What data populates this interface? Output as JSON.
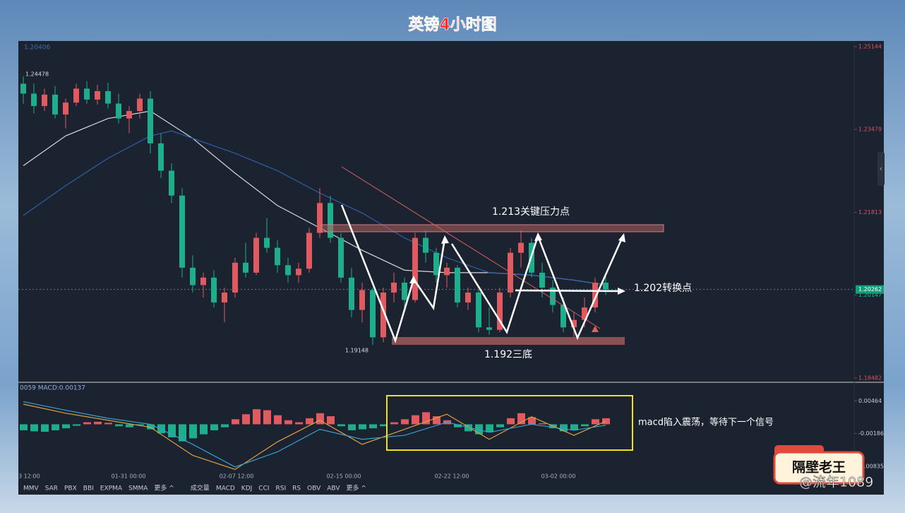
{
  "title": "英镑4小时图",
  "chart_data": {
    "type": "candlestick",
    "up_color": "#e05a5f",
    "down_color": "#1fae8c",
    "candles": [
      [
        1.244,
        1.2455,
        1.24,
        1.242
      ],
      [
        1.242,
        1.244,
        1.238,
        1.2395
      ],
      [
        1.2395,
        1.243,
        1.2385,
        1.2418
      ],
      [
        1.2418,
        1.2435,
        1.237,
        1.2378
      ],
      [
        1.2378,
        1.241,
        1.235,
        1.2402
      ],
      [
        1.2402,
        1.244,
        1.2395,
        1.243
      ],
      [
        1.243,
        1.2445,
        1.24,
        1.2408
      ],
      [
        1.2408,
        1.2438,
        1.2398,
        1.2425
      ],
      [
        1.2425,
        1.2442,
        1.239,
        1.24
      ],
      [
        1.24,
        1.242,
        1.236,
        1.237
      ],
      [
        1.237,
        1.2395,
        1.234,
        1.2385
      ],
      [
        1.2385,
        1.242,
        1.237,
        1.241
      ],
      [
        1.241,
        1.2425,
        1.23,
        1.232
      ],
      [
        1.232,
        1.234,
        1.225,
        1.2265
      ],
      [
        1.2265,
        1.228,
        1.22,
        1.2215
      ],
      [
        1.2215,
        1.223,
        1.205,
        1.207
      ],
      [
        1.207,
        1.2095,
        1.202,
        1.2035
      ],
      [
        1.2035,
        1.206,
        1.201,
        1.205
      ],
      [
        1.205,
        1.2065,
        1.199,
        1.2
      ],
      [
        1.2,
        1.203,
        1.196,
        1.202
      ],
      [
        1.202,
        1.209,
        1.201,
        1.208
      ],
      [
        1.208,
        1.212,
        1.205,
        1.206
      ],
      [
        1.206,
        1.214,
        1.2055,
        1.213
      ],
      [
        1.213,
        1.217,
        1.21,
        1.211
      ],
      [
        1.211,
        1.2125,
        1.206,
        1.2075
      ],
      [
        1.2075,
        1.209,
        1.204,
        1.2055
      ],
      [
        1.2055,
        1.208,
        1.204,
        1.2068
      ],
      [
        1.2068,
        1.215,
        1.206,
        1.214
      ],
      [
        1.214,
        1.223,
        1.213,
        1.22
      ],
      [
        1.22,
        1.2215,
        1.212,
        1.213
      ],
      [
        1.213,
        1.214,
        1.204,
        1.205
      ],
      [
        1.205,
        1.207,
        1.197,
        1.1985
      ],
      [
        1.1985,
        1.204,
        1.196,
        1.2025
      ],
      [
        1.2025,
        1.203,
        1.1915,
        1.193
      ],
      [
        1.193,
        1.203,
        1.192,
        1.202
      ],
      [
        1.202,
        1.206,
        1.2,
        1.204
      ],
      [
        1.204,
        1.205,
        1.199,
        1.2005
      ],
      [
        1.2005,
        1.214,
        1.2,
        1.213
      ],
      [
        1.213,
        1.2145,
        1.208,
        1.21
      ],
      [
        1.21,
        1.211,
        1.204,
        1.2055
      ],
      [
        1.2055,
        1.208,
        1.203,
        1.207
      ],
      [
        1.207,
        1.2075,
        1.199,
        1.2
      ],
      [
        1.2,
        1.203,
        1.1985,
        1.202
      ],
      [
        1.202,
        1.2025,
        1.194,
        1.195
      ],
      [
        1.195,
        1.199,
        1.1935,
        1.1945
      ],
      [
        1.1945,
        1.203,
        1.194,
        1.202
      ],
      [
        1.202,
        1.211,
        1.201,
        1.21
      ],
      [
        1.21,
        1.2145,
        1.207,
        1.212
      ],
      [
        1.212,
        1.213,
        1.205,
        1.206
      ],
      [
        1.206,
        1.208,
        1.201,
        1.203
      ],
      [
        1.203,
        1.2045,
        1.198,
        1.1995
      ],
      [
        1.1995,
        1.201,
        1.194,
        1.195
      ],
      [
        1.195,
        1.198,
        1.193,
        1.1965
      ],
      [
        1.1965,
        1.201,
        1.195,
        1.199
      ],
      [
        1.199,
        1.205,
        1.198,
        1.204
      ],
      [
        1.204,
        1.2055,
        1.2015,
        1.2026
      ]
    ],
    "ma_lines": [
      {
        "color": "#d8d8d8",
        "x": [
          0,
          4,
          8,
          12,
          16,
          20,
          24,
          28,
          32,
          36,
          40,
          44,
          48,
          52,
          55
        ],
        "values": [
          1.2275,
          1.2335,
          1.237,
          1.2385,
          1.233,
          1.226,
          1.2195,
          1.215,
          1.2105,
          1.2065,
          1.206,
          1.206,
          1.2055,
          1.2045,
          1.2035
        ]
      },
      {
        "color": "#2f5fa8",
        "x": [
          0,
          4,
          8,
          12,
          14,
          20,
          24,
          28,
          32,
          36,
          40,
          44,
          48,
          52,
          55
        ],
        "values": [
          1.2175,
          1.2235,
          1.229,
          1.2335,
          1.2345,
          1.23,
          1.2265,
          1.222,
          1.218,
          1.213,
          1.209,
          1.206,
          1.2055,
          1.2045,
          1.2035
        ]
      }
    ],
    "ylim": [
      1.1841,
      1.2523
    ],
    "yticks": [
      1.25144,
      1.23479,
      1.21813,
      1.20147,
      1.18482
    ],
    "last_price": 1.20262,
    "top_left_label": "1.20406",
    "high_label": 1.24478,
    "low_label": 1.19148,
    "annotations": {
      "resistance": "1.213关键压力点",
      "pivot": "1.202转换点",
      "bottom": "1.192三底",
      "macd_note": "macd陷入震荡，等待下一个信号"
    },
    "x_labels": [
      "3 12:00",
      "01-31 00:00",
      "02-07 12:00",
      "02-15 00:00",
      "02-22 12:00",
      "03-02 00:00"
    ],
    "macd": {
      "title": "0059 MACD:0.00137",
      "ylim": [
        -0.0112,
        0.0078
      ],
      "yticks": [
        0.00464,
        -0.00186,
        {
          "value": -0.00835,
          "label": "-0.00835"
        }
      ],
      "histogram": [
        -0.0012,
        -0.0014,
        -0.0015,
        -0.0012,
        -0.0008,
        -0.0003,
        0.0004,
        0.0005,
        0.0003,
        -0.0004,
        -0.0006,
        -0.0002,
        -0.001,
        -0.0018,
        -0.0026,
        -0.0034,
        -0.0028,
        -0.002,
        -0.0012,
        -0.0006,
        0.001,
        0.002,
        0.003,
        0.0028,
        0.0018,
        0.0008,
        0.0004,
        0.0012,
        0.0022,
        0.0016,
        -0.0004,
        -0.0012,
        -0.001,
        -0.0008,
        -0.0004,
        0.0004,
        0.001,
        0.0018,
        0.0024,
        0.0016,
        0.0008,
        -0.0006,
        -0.0014,
        -0.002,
        -0.0016,
        -0.0006,
        0.0012,
        0.0022,
        0.0014,
        0.0002,
        -0.0008,
        -0.0014,
        -0.0012,
        -0.0004,
        0.001,
        0.0012
      ],
      "lines": [
        {
          "color": "#e0a040",
          "x": [
            0,
            4,
            8,
            12,
            16,
            20,
            24,
            28,
            32,
            36,
            40,
            44,
            48,
            52,
            55
          ],
          "values": [
            0.004,
            0.0022,
            0.0008,
            -0.0006,
            -0.0062,
            -0.009,
            -0.0035,
            0.0008,
            -0.004,
            -0.001,
            0.002,
            -0.003,
            0.0015,
            -0.0022,
            0.0006
          ]
        },
        {
          "color": "#3aa0d0",
          "x": [
            0,
            4,
            8,
            12,
            16,
            20,
            24,
            28,
            32,
            36,
            40,
            44,
            48,
            52,
            55
          ],
          "values": [
            0.0045,
            0.0028,
            0.0012,
            0.0,
            -0.004,
            -0.0085,
            -0.0055,
            -0.001,
            -0.003,
            -0.0022,
            0.0004,
            -0.0016,
            0.0,
            -0.0012,
            -0.0002
          ]
        }
      ]
    },
    "indicators": [
      "MMV",
      "SAR",
      "PBX",
      "BBI",
      "EXPMA",
      "SMMA",
      "更多 ^",
      "成交量",
      "MACD",
      "KDJ",
      "CCI",
      "RSI",
      "RS",
      "OBV",
      "ABV",
      "更多 ^"
    ]
  },
  "watermark": {
    "badge": "隔壁老王",
    "handle": "@流年1089"
  }
}
